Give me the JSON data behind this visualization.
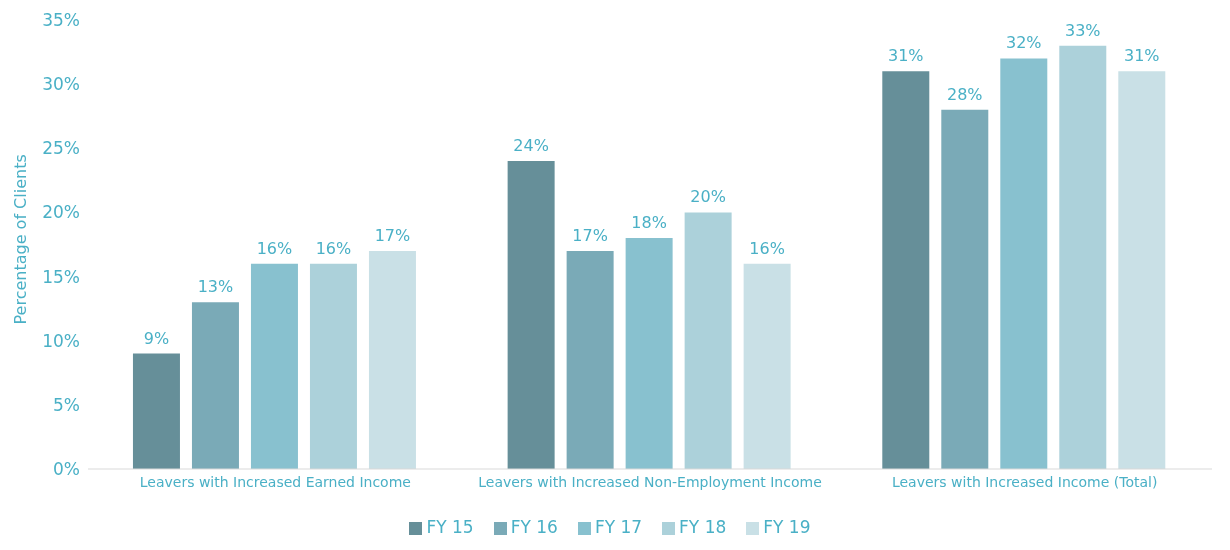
{
  "chart_data": {
    "type": "bar",
    "ylabel": "Percentage of Clients",
    "categories": [
      "Leavers with Increased Earned Income",
      "Leavers with Increased Non-Employment Income",
      "Leavers with Increased Income (Total)"
    ],
    "series": [
      {
        "name": "FY 15",
        "color": "#668f99",
        "values": [
          9,
          24,
          31
        ],
        "value_labels": [
          "9%",
          "24%",
          "31%"
        ]
      },
      {
        "name": "FY 16",
        "color": "#7aaab7",
        "values": [
          13,
          17,
          28
        ],
        "value_labels": [
          "13%",
          "17%",
          "28%"
        ]
      },
      {
        "name": "FY 17",
        "color": "#88c1cf",
        "values": [
          16,
          18,
          32
        ],
        "value_labels": [
          "16%",
          "18%",
          "32%"
        ]
      },
      {
        "name": "FY 18",
        "color": "#acd1da",
        "values": [
          16,
          20,
          33
        ],
        "value_labels": [
          "16%",
          "20%",
          "33%"
        ]
      },
      {
        "name": "FY 19",
        "color": "#c9e0e6",
        "values": [
          17,
          16,
          31
        ],
        "value_labels": [
          "17%",
          "16%",
          "31%"
        ]
      }
    ],
    "ylim": [
      0,
      35
    ],
    "yticks": [
      {
        "value": 0,
        "label": "0%"
      },
      {
        "value": 5,
        "label": "5%"
      },
      {
        "value": 10,
        "label": "10%"
      },
      {
        "value": 15,
        "label": "15%"
      },
      {
        "value": 20,
        "label": "20%"
      },
      {
        "value": 25,
        "label": "25%"
      },
      {
        "value": 30,
        "label": "30%"
      },
      {
        "value": 35,
        "label": "35%"
      }
    ],
    "grid": false,
    "legend": "bottom"
  }
}
